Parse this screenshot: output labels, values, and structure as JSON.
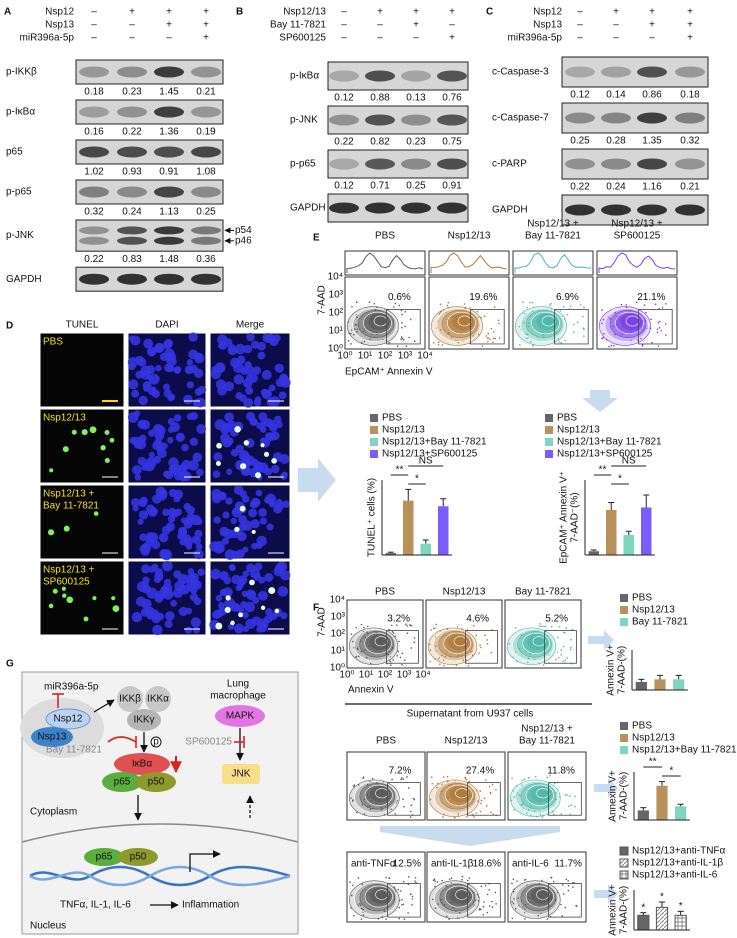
{
  "panel_a": {
    "letter": "A",
    "conditions": [
      {
        "label": "Nsp12",
        "signs": [
          "–",
          "+",
          "+",
          "+"
        ]
      },
      {
        "label": "Nsp13",
        "signs": [
          "–",
          "–",
          "+",
          "+"
        ]
      },
      {
        "label": "miR396a-5p",
        "signs": [
          "–",
          "–",
          "–",
          "+"
        ]
      }
    ],
    "blots": [
      {
        "label": "p-IKKβ",
        "values": [
          0.18,
          0.23,
          1.45,
          0.21
        ]
      },
      {
        "label": "p-IκBα",
        "values": [
          0.16,
          0.22,
          1.36,
          0.19
        ]
      },
      {
        "label": "p65",
        "values": [
          1.02,
          0.93,
          0.91,
          1.08
        ]
      },
      {
        "label": "p-p65",
        "values": [
          0.32,
          0.24,
          1.13,
          0.25
        ]
      },
      {
        "label": "p-JNK",
        "values": [
          0.22,
          0.83,
          1.48,
          0.36
        ],
        "bands": [
          "p54",
          "p46"
        ]
      },
      {
        "label": "GAPDH"
      }
    ]
  },
  "panel_b": {
    "letter": "B",
    "conditions": [
      {
        "label": "Nsp12/13",
        "signs": [
          "–",
          "+",
          "+",
          "+"
        ]
      },
      {
        "label": "Bay 11-7821",
        "signs": [
          "–",
          "–",
          "+",
          "–"
        ]
      },
      {
        "label": "SP600125",
        "signs": [
          "–",
          "–",
          "–",
          "+"
        ]
      }
    ],
    "blots": [
      {
        "label": "p-IκBα",
        "values": [
          0.12,
          0.88,
          0.13,
          0.76
        ]
      },
      {
        "label": "p-JNK",
        "values": [
          0.22,
          0.82,
          0.23,
          0.75
        ]
      },
      {
        "label": "p-p65",
        "values": [
          0.12,
          0.71,
          0.25,
          0.91
        ]
      },
      {
        "label": "GAPDH"
      }
    ]
  },
  "panel_c": {
    "letter": "C",
    "conditions": [
      {
        "label": "Nsp12",
        "signs": [
          "–",
          "+",
          "+",
          "+"
        ]
      },
      {
        "label": "Nsp13",
        "signs": [
          "–",
          "–",
          "+",
          "+"
        ]
      },
      {
        "label": "miR396a-5p",
        "signs": [
          "–",
          "–",
          "–",
          "+"
        ]
      }
    ],
    "blots": [
      {
        "label": "c-Caspase-3",
        "values": [
          0.12,
          0.14,
          0.86,
          0.18
        ]
      },
      {
        "label": "c-Caspase-7",
        "values": [
          0.25,
          0.28,
          1.35,
          0.32
        ]
      },
      {
        "label": "c-PARP",
        "values": [
          0.22,
          0.24,
          1.16,
          0.21
        ]
      },
      {
        "label": "GAPDH"
      }
    ]
  },
  "panel_d": {
    "letter": "D",
    "columns": [
      "TUNEL",
      "DAPI",
      "Merge"
    ],
    "rows": [
      [
        "PBS"
      ],
      [
        "Nsp12/13"
      ],
      [
        "Nsp12/13 +",
        "Bay 11-7821"
      ],
      [
        "Nsp12/13 +",
        "SP600125"
      ]
    ]
  },
  "panel_e": {
    "letter": "E",
    "y_axis": "7-AAD",
    "x_axis": "EpCAM⁺ Annexin V",
    "axis_ticks": [
      "10⁰",
      "10¹",
      "10²",
      "10³",
      "10⁴"
    ],
    "plots": [
      {
        "title": [
          "PBS"
        ],
        "percent": "0.6%",
        "color": "#5a5a5a"
      },
      {
        "title": [
          "Nsp12/13"
        ],
        "percent": "19.6%",
        "color": "#b07a3a"
      },
      {
        "title": [
          "Nsp12/13 +",
          "Bay 11-7821"
        ],
        "percent": "6.9%",
        "color": "#4fb8a8"
      },
      {
        "title": [
          "Nsp12/13 +",
          "SP600125"
        ],
        "percent": "21.1%",
        "color": "#7a3fe8"
      }
    ],
    "charts": [
      {
        "y_label": [
          "TUNEL⁺ cells (%)"
        ],
        "ylim": [
          0,
          40
        ],
        "significance": [
          "**",
          "*",
          "NS"
        ],
        "series": [
          {
            "name": "PBS",
            "color": "#666666",
            "value": 1,
            "error": 0.5
          },
          {
            "name": "Nsp12/13",
            "color": "#b8925a",
            "value": 29,
            "error": 6
          },
          {
            "name": "Nsp12/13+Bay 11-7821",
            "color": "#7fd6c0",
            "value": 6,
            "error": 2
          },
          {
            "name": "Nsp12/13+SP600125",
            "color": "#7b5cff",
            "value": 26,
            "error": 4
          }
        ]
      },
      {
        "y_label": [
          "EpCAM⁺ Annexin V⁺",
          "7-AAD⁻(%)"
        ],
        "ylim": [
          0,
          30
        ],
        "significance": [
          "**",
          "*",
          "NS"
        ],
        "series": [
          {
            "name": "PBS",
            "color": "#666666",
            "value": 1.5,
            "error": 0.5
          },
          {
            "name": "Nsp12/13",
            "color": "#b8925a",
            "value": 18,
            "error": 3
          },
          {
            "name": "Nsp12/13+Bay 11-7821",
            "color": "#7fd6c0",
            "value": 8,
            "error": 1.5
          },
          {
            "name": "Nsp12/13+SP600125",
            "color": "#7b5cff",
            "value": 19,
            "error": 5
          }
        ]
      }
    ]
  },
  "panel_f": {
    "letter": "F",
    "y_axis": "7-AAD",
    "x_axis": "Annexin V",
    "axis_ticks": [
      "10⁰",
      "10¹",
      "10²",
      "10³",
      "10⁴"
    ],
    "divider": "Supernatant from U937 cells",
    "top": {
      "plots": [
        {
          "title": [
            "PBS"
          ],
          "percent": "3.2%",
          "color": "#5a5a5a"
        },
        {
          "title": [
            "Nsp12/13"
          ],
          "percent": "4.6%",
          "color": "#b07a3a"
        },
        {
          "title": [
            "Bay 11-7821"
          ],
          "percent": "5.2%",
          "color": "#4fb8a8"
        }
      ],
      "chart": {
        "y_label": [
          "Annexin V+",
          "7-AAD-(%)"
        ],
        "ylim": [
          0,
          15
        ],
        "series": [
          {
            "name": "PBS",
            "color": "#666666",
            "value": 3,
            "error": 1
          },
          {
            "name": "Nsp12/13",
            "color": "#b8925a",
            "value": 4,
            "error": 1.5
          },
          {
            "name": "Bay 11-7821",
            "color": "#7fd6c0",
            "value": 4,
            "error": 1.5
          }
        ]
      }
    },
    "middle": {
      "plots": [
        {
          "title": [
            "PBS"
          ],
          "percent": "7.2%",
          "color": "#5a5a5a"
        },
        {
          "title": [
            "Nsp12/13"
          ],
          "percent": "27.4%",
          "color": "#b07a3a"
        },
        {
          "title": [
            "Nsp12/13 +",
            "Bay 11-7821"
          ],
          "percent": "11.8%",
          "color": "#4fb8a8"
        }
      ],
      "chart": {
        "y_label": [
          "Annexin V+",
          "7-AAD-(%)"
        ],
        "ylim": [
          0,
          35
        ],
        "significance": [
          "**",
          "*"
        ],
        "series": [
          {
            "name": "PBS",
            "color": "#666666",
            "value": 7,
            "error": 2
          },
          {
            "name": "Nsp12/13",
            "color": "#b8925a",
            "value": 25,
            "error": 3
          },
          {
            "name": "Nsp12/13+Bay 11-7821",
            "color": "#7fd6c0",
            "value": 10,
            "error": 1.5
          }
        ]
      }
    },
    "bottom": {
      "plots": [
        {
          "title": [
            "anti-TNFα"
          ],
          "percent": "12.5%",
          "color": "#5a5a5a"
        },
        {
          "title": [
            "anti-IL-1β"
          ],
          "percent": "18.6%",
          "color": "#5a5a5a"
        },
        {
          "title": [
            "anti-IL-6"
          ],
          "percent": "11.7%",
          "color": "#5a5a5a"
        }
      ],
      "chart": {
        "y_label": [
          "Annexin V+",
          "7-AAD-(%)"
        ],
        "ylim": [
          0,
          30
        ],
        "stars": [
          "*",
          "*",
          "*"
        ],
        "series": [
          {
            "name": "Nsp12/13+anti-TNFα",
            "color": "#666666",
            "fill": "solid",
            "value": 11,
            "error": 2
          },
          {
            "name": "Nsp12/13+anti-IL-1β",
            "color": "#888888",
            "fill": "hatch",
            "value": 17,
            "error": 4
          },
          {
            "name": "Nsp12/13+anti-IL-6",
            "color": "#888888",
            "fill": "grid",
            "value": 11,
            "error": 3
          }
        ]
      }
    }
  },
  "panel_g": {
    "letter": "G",
    "mirna": "miR396a-5p",
    "nsp12": "Nsp12",
    "nsp13": "Nsp13",
    "ikkb": "IKKβ",
    "ikka": "IKKα",
    "ikkg": "IKKγ",
    "cell": [
      "Lung",
      "macrophage"
    ],
    "mapk": "MAPK",
    "sp": "SP600125",
    "bay": "Bay 11-7821",
    "phospho": "p",
    "ikba": "IκBα",
    "p65": "p65",
    "p50": "p50",
    "jnk": "JNK",
    "cytoplasm": "Cytoplasm",
    "cytokines": "TNFα, IL-1, IL-6",
    "inflammation": "Inflammation",
    "nucleus": "Nucleus"
  }
}
